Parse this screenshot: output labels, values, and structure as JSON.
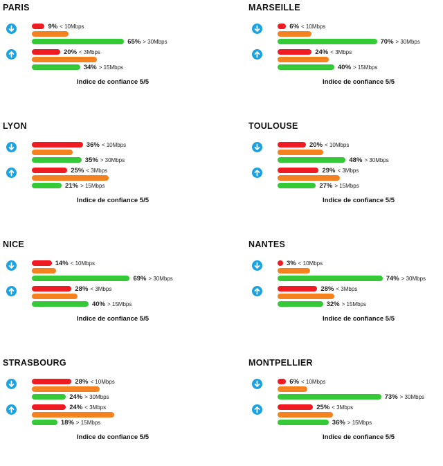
{
  "confidence_label": "Indice de confiance 5/5",
  "colors": {
    "low": "#ee1b22",
    "mid": "#f58220",
    "high": "#35c837",
    "icon": "#1aa3e0"
  },
  "icons": {
    "download": "download-arrow-icon",
    "upload": "upload-arrow-icon"
  },
  "chart_data": {
    "type": "bar",
    "orientation": "horizontal",
    "note": "Per-city speed distribution; each group: low / medium / high share",
    "cities": [
      {
        "name": "PARIS",
        "download": {
          "low": {
            "value": 9,
            "pct_label": "9%",
            "threshold": "< 10Mbps"
          },
          "mid": {
            "value": 26
          },
          "high": {
            "value": 65,
            "pct_label": "65%",
            "threshold": "> 30Mbps"
          }
        },
        "upload": {
          "low": {
            "value": 20,
            "pct_label": "20%",
            "threshold": "< 3Mbps"
          },
          "mid": {
            "value": 46
          },
          "high": {
            "value": 34,
            "pct_label": "34%",
            "threshold": "> 15Mbps"
          }
        },
        "confidence": "Indice de confiance 5/5"
      },
      {
        "name": "MARSEILLE",
        "download": {
          "low": {
            "value": 6,
            "pct_label": "6%",
            "threshold": "< 10Mbps"
          },
          "mid": {
            "value": 24
          },
          "high": {
            "value": 70,
            "pct_label": "70%",
            "threshold": "> 30Mbps"
          }
        },
        "upload": {
          "low": {
            "value": 24,
            "pct_label": "24%",
            "threshold": "< 3Mbps"
          },
          "mid": {
            "value": 36
          },
          "high": {
            "value": 40,
            "pct_label": "40%",
            "threshold": "> 15Mbps"
          }
        },
        "confidence": "Indice de confiance 5/5"
      },
      {
        "name": "LYON",
        "download": {
          "low": {
            "value": 36,
            "pct_label": "36%",
            "threshold": "< 10Mbps"
          },
          "mid": {
            "value": 29
          },
          "high": {
            "value": 35,
            "pct_label": "35%",
            "threshold": "> 30Mbps"
          }
        },
        "upload": {
          "low": {
            "value": 25,
            "pct_label": "25%",
            "threshold": "< 3Mbps"
          },
          "mid": {
            "value": 54
          },
          "high": {
            "value": 21,
            "pct_label": "21%",
            "threshold": "> 15Mbps"
          }
        },
        "confidence": "Indice de confiance 5/5"
      },
      {
        "name": "TOULOUSE",
        "download": {
          "low": {
            "value": 20,
            "pct_label": "20%",
            "threshold": "< 10Mbps"
          },
          "mid": {
            "value": 32
          },
          "high": {
            "value": 48,
            "pct_label": "48%",
            "threshold": "> 30Mbps"
          }
        },
        "upload": {
          "low": {
            "value": 29,
            "pct_label": "29%",
            "threshold": "< 3Mbps"
          },
          "mid": {
            "value": 44
          },
          "high": {
            "value": 27,
            "pct_label": "27%",
            "threshold": "> 15Mbps"
          }
        },
        "confidence": "Indice de confiance 5/5"
      },
      {
        "name": "NICE",
        "download": {
          "low": {
            "value": 14,
            "pct_label": "14%",
            "threshold": "< 10Mbps"
          },
          "mid": {
            "value": 17
          },
          "high": {
            "value": 69,
            "pct_label": "69%",
            "threshold": "> 30Mbps"
          }
        },
        "upload": {
          "low": {
            "value": 28,
            "pct_label": "28%",
            "threshold": "< 3Mbps"
          },
          "mid": {
            "value": 32
          },
          "high": {
            "value": 40,
            "pct_label": "40%",
            "threshold": "> 15Mbps"
          }
        },
        "confidence": "Indice de confiance 5/5"
      },
      {
        "name": "NANTES",
        "download": {
          "low": {
            "value": 3,
            "pct_label": "3%",
            "threshold": "< 10Mbps"
          },
          "mid": {
            "value": 23
          },
          "high": {
            "value": 74,
            "pct_label": "74%",
            "threshold": "> 30Mbps"
          }
        },
        "upload": {
          "low": {
            "value": 28,
            "pct_label": "28%",
            "threshold": "< 3Mbps"
          },
          "mid": {
            "value": 40
          },
          "high": {
            "value": 32,
            "pct_label": "32%",
            "threshold": "> 15Mbps"
          }
        },
        "confidence": "Indice de confiance 5/5"
      },
      {
        "name": "STRASBOURG",
        "download": {
          "low": {
            "value": 28,
            "pct_label": "28%",
            "threshold": "< 10Mbps"
          },
          "mid": {
            "value": 48
          },
          "high": {
            "value": 24,
            "pct_label": "24%",
            "threshold": "> 30Mbps"
          }
        },
        "upload": {
          "low": {
            "value": 24,
            "pct_label": "24%",
            "threshold": "< 3Mbps"
          },
          "mid": {
            "value": 58
          },
          "high": {
            "value": 18,
            "pct_label": "18%",
            "threshold": "> 15Mbps"
          }
        },
        "confidence": "Indice de confiance 5/5"
      },
      {
        "name": "MONTPELLIER",
        "download": {
          "low": {
            "value": 6,
            "pct_label": "6%",
            "threshold": "< 10Mbps"
          },
          "mid": {
            "value": 21
          },
          "high": {
            "value": 73,
            "pct_label": "73%",
            "threshold": "> 30Mbps"
          }
        },
        "upload": {
          "low": {
            "value": 25,
            "pct_label": "25%",
            "threshold": "< 3Mbps"
          },
          "mid": {
            "value": 39
          },
          "high": {
            "value": 36,
            "pct_label": "36%",
            "threshold": "> 15Mbps"
          }
        },
        "confidence": "Indice de confiance 5/5"
      }
    ]
  }
}
